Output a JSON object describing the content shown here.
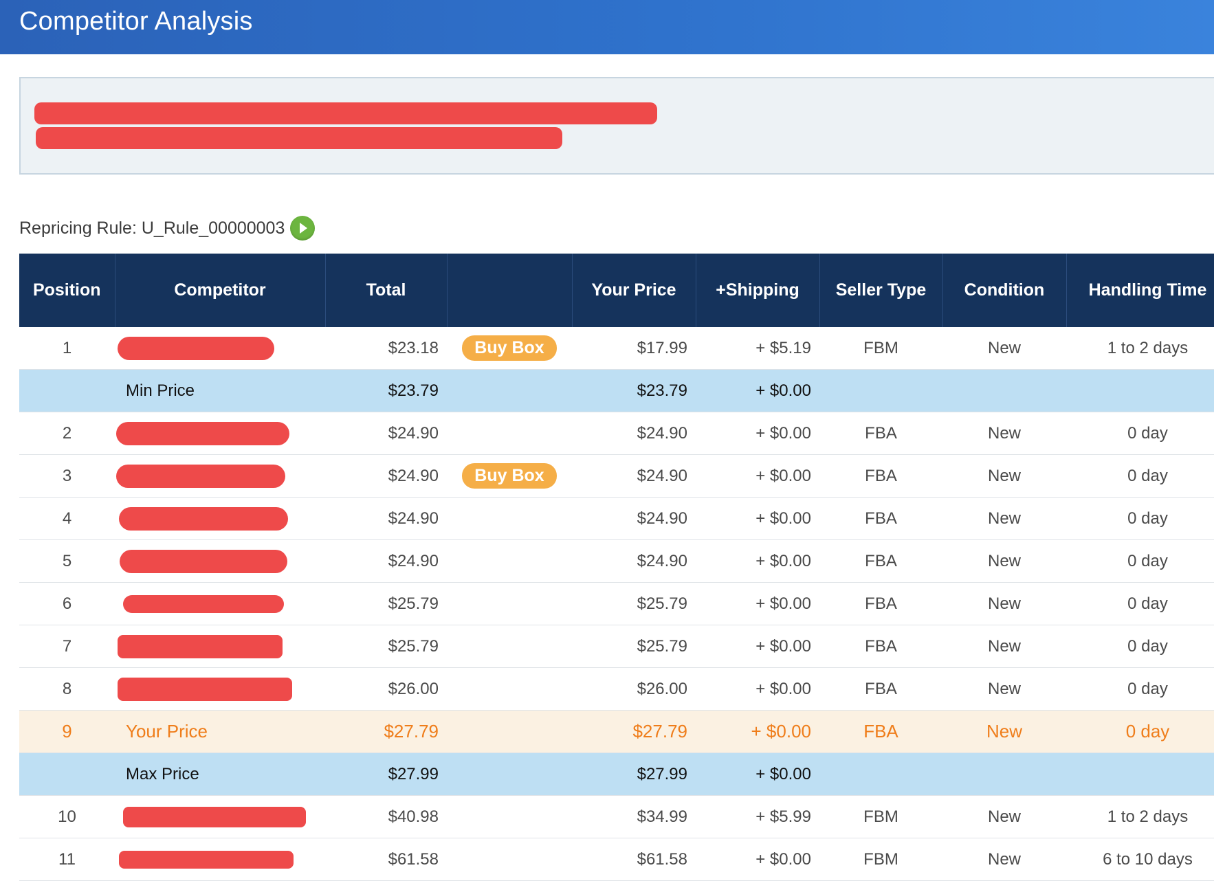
{
  "header": {
    "title": "Competitor Analysis",
    "bar_color": "#2f72cc"
  },
  "repricing": {
    "label": "Repricing Rule: U_Rule_00000003",
    "play_icon": "play-circle-icon"
  },
  "table": {
    "columns": [
      "Position",
      "Competitor",
      "Total",
      "",
      "Your Price",
      "+Shipping",
      "Seller Type",
      "Condition",
      "Handling Time"
    ],
    "buy_box_label": "Buy Box",
    "rows": [
      {
        "position": "1",
        "competitor": "",
        "total": "$23.18",
        "badge": "Buy Box",
        "your_price": "$17.99",
        "shipping": "+ $5.19",
        "seller_type": "FBM",
        "condition": "New",
        "handling": "1 to 2 days"
      },
      {
        "position": "",
        "competitor": "Min Price",
        "total": "$23.79",
        "badge": "",
        "your_price": "$23.79",
        "shipping": "+ $0.00",
        "seller_type": "",
        "condition": "",
        "handling": ""
      },
      {
        "position": "2",
        "competitor": "",
        "total": "$24.90",
        "badge": "",
        "your_price": "$24.90",
        "shipping": "+ $0.00",
        "seller_type": "FBA",
        "condition": "New",
        "handling": "0 day"
      },
      {
        "position": "3",
        "competitor": "",
        "total": "$24.90",
        "badge": "Buy Box",
        "your_price": "$24.90",
        "shipping": "+ $0.00",
        "seller_type": "FBA",
        "condition": "New",
        "handling": "0 day"
      },
      {
        "position": "4",
        "competitor": "",
        "total": "$24.90",
        "badge": "",
        "your_price": "$24.90",
        "shipping": "+ $0.00",
        "seller_type": "FBA",
        "condition": "New",
        "handling": "0 day"
      },
      {
        "position": "5",
        "competitor": "",
        "total": "$24.90",
        "badge": "",
        "your_price": "$24.90",
        "shipping": "+ $0.00",
        "seller_type": "FBA",
        "condition": "New",
        "handling": "0 day"
      },
      {
        "position": "6",
        "competitor": "",
        "total": "$25.79",
        "badge": "",
        "your_price": "$25.79",
        "shipping": "+ $0.00",
        "seller_type": "FBA",
        "condition": "New",
        "handling": "0 day"
      },
      {
        "position": "7",
        "competitor": "",
        "total": "$25.79",
        "badge": "",
        "your_price": "$25.79",
        "shipping": "+ $0.00",
        "seller_type": "FBA",
        "condition": "New",
        "handling": "0 day"
      },
      {
        "position": "8",
        "competitor": "",
        "total": "$26.00",
        "badge": "",
        "your_price": "$26.00",
        "shipping": "+ $0.00",
        "seller_type": "FBA",
        "condition": "New",
        "handling": "0 day"
      },
      {
        "position": "9",
        "competitor": "Your Price",
        "total": "$27.79",
        "badge": "",
        "your_price": "$27.79",
        "shipping": "+ $0.00",
        "seller_type": "FBA",
        "condition": "New",
        "handling": "0 day"
      },
      {
        "position": "",
        "competitor": "Max Price",
        "total": "$27.99",
        "badge": "",
        "your_price": "$27.99",
        "shipping": "+ $0.00",
        "seller_type": "",
        "condition": "",
        "handling": ""
      },
      {
        "position": "10",
        "competitor": "",
        "total": "$40.98",
        "badge": "",
        "your_price": "$34.99",
        "shipping": "+ $5.99",
        "seller_type": "FBM",
        "condition": "New",
        "handling": "1 to 2 days"
      },
      {
        "position": "11",
        "competitor": "",
        "total": "$61.58",
        "badge": "",
        "your_price": "$61.58",
        "shipping": "+ $0.00",
        "seller_type": "FBM",
        "condition": "New",
        "handling": "6 to 10 days"
      }
    ]
  },
  "colors": {
    "header_bg": "#15335c",
    "threshold_row": "#bedff3",
    "your_row_bg": "#fbf1e2",
    "your_row_text": "#ef7d1a",
    "buy_box": "#f5ae47",
    "redaction": "#ee4a4a"
  }
}
